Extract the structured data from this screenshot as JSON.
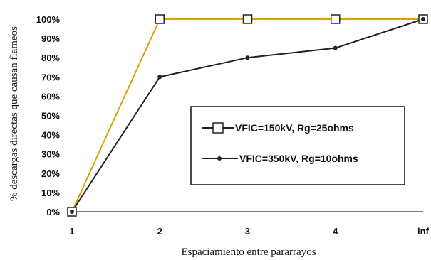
{
  "chart_data": {
    "type": "line",
    "title": "",
    "xlabel": "Espaciamiento entre pararrayos",
    "ylabel": "% descargas directas que causan flameos",
    "categories": [
      "1",
      "2",
      "3",
      "4",
      "inf"
    ],
    "yticks": [
      "0%",
      "10%",
      "20%",
      "30%",
      "40%",
      "50%",
      "60%",
      "70%",
      "80%",
      "90%",
      "100%"
    ],
    "ylim": [
      0,
      100
    ],
    "grid": false,
    "legend_position": "center-right",
    "series": [
      {
        "name": "VFIC=150kV, Rg=25ohms",
        "values": [
          0,
          100,
          100,
          100,
          100
        ],
        "marker": "square",
        "color": "#d8a000"
      },
      {
        "name": "VFIC=350kV, Rg=10ohms",
        "values": [
          0,
          70,
          80,
          85,
          100
        ],
        "marker": "dot",
        "color": "#222222"
      }
    ]
  }
}
